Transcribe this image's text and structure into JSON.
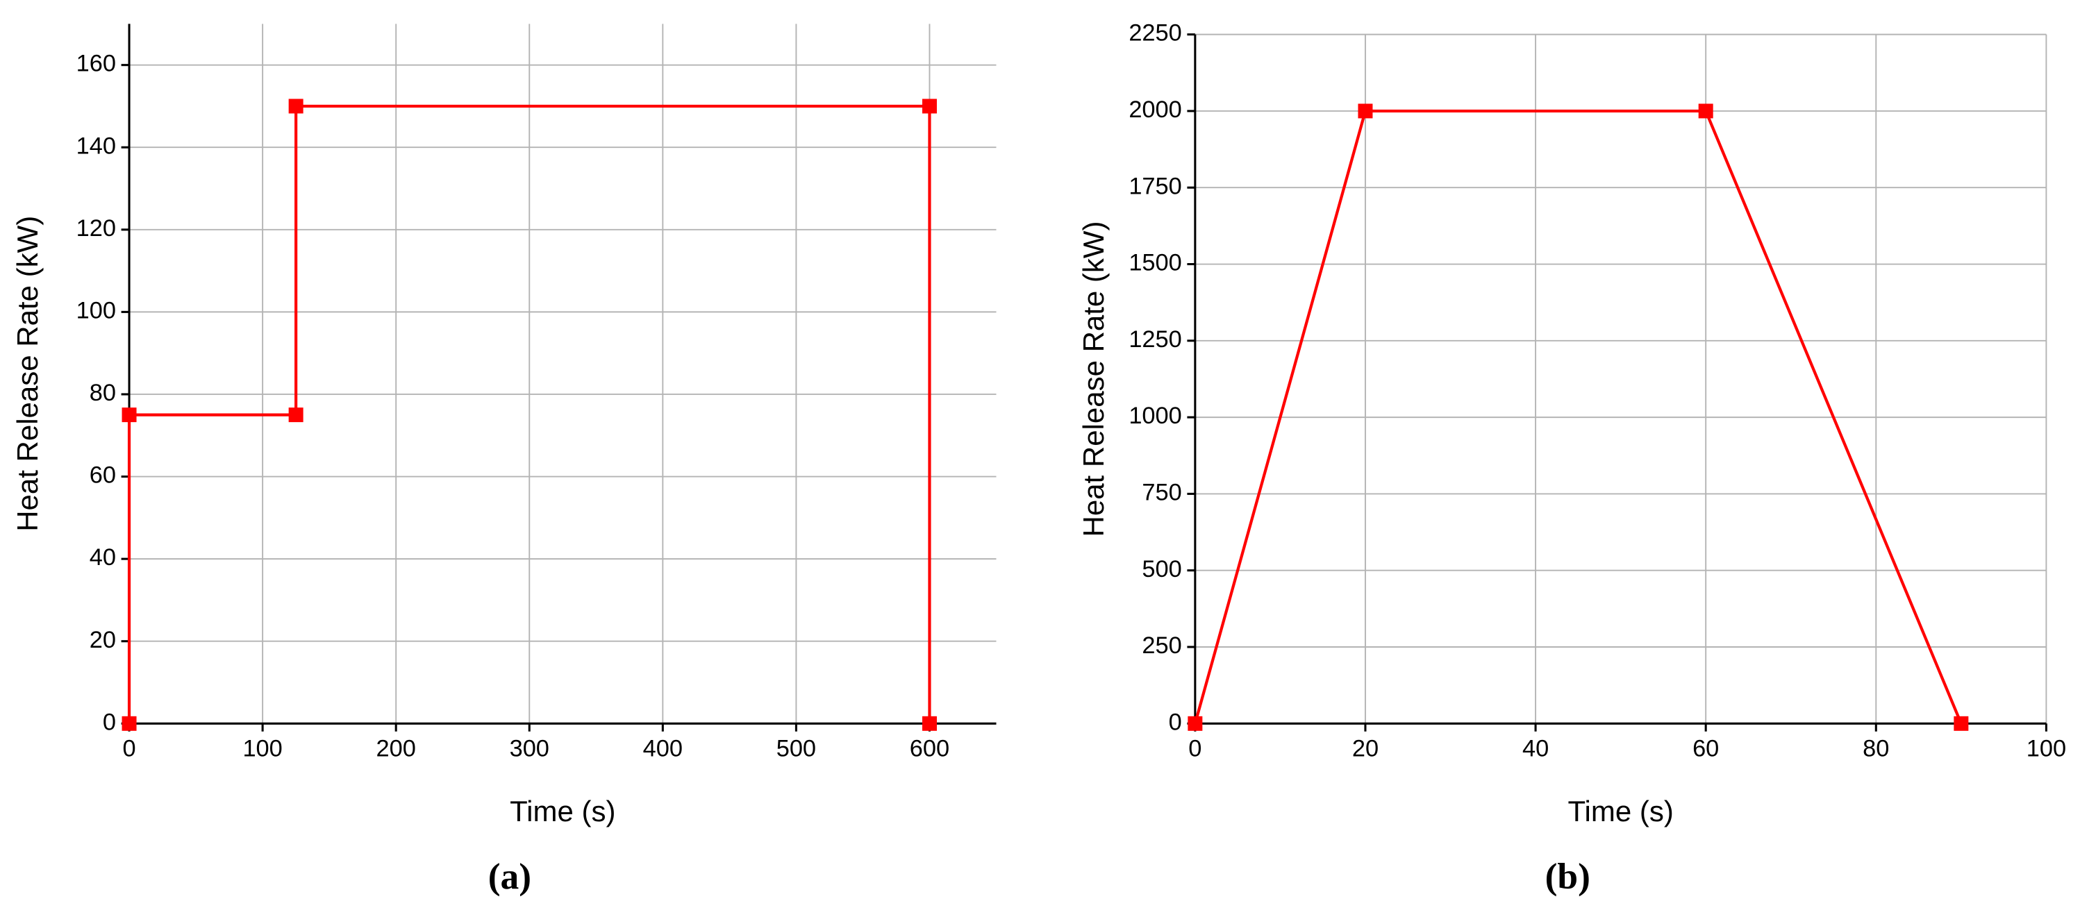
{
  "chart_data": [
    {
      "type": "line",
      "label": "(a)",
      "xlabel": "Time (s)",
      "ylabel": "Heat Release Rate (kW)",
      "x": [
        0,
        0,
        125,
        125,
        600,
        600
      ],
      "series": [
        {
          "color": "#ff0000",
          "values": [
            0,
            75,
            75,
            150,
            150,
            0
          ]
        }
      ],
      "xlim": [
        0,
        650
      ],
      "ylim": [
        0,
        170
      ],
      "xticks": [
        0,
        100,
        200,
        300,
        400,
        500,
        600
      ],
      "yticks": [
        0,
        20,
        40,
        60,
        80,
        100,
        120,
        140,
        160
      ],
      "grid": true
    },
    {
      "type": "line",
      "label": "(b)",
      "xlabel": "Time (s)",
      "ylabel": "Heat Release Rate (kW)",
      "x": [
        0,
        20,
        60,
        90
      ],
      "series": [
        {
          "color": "#ff0000",
          "values": [
            0,
            2000,
            2000,
            0
          ]
        }
      ],
      "xlim": [
        0,
        100
      ],
      "ylim": [
        0,
        2250
      ],
      "xticks": [
        0,
        20,
        40,
        60,
        80,
        100
      ],
      "yticks": [
        0,
        250,
        500,
        750,
        1000,
        1250,
        1500,
        1750,
        2000,
        2250
      ],
      "grid": true
    }
  ]
}
